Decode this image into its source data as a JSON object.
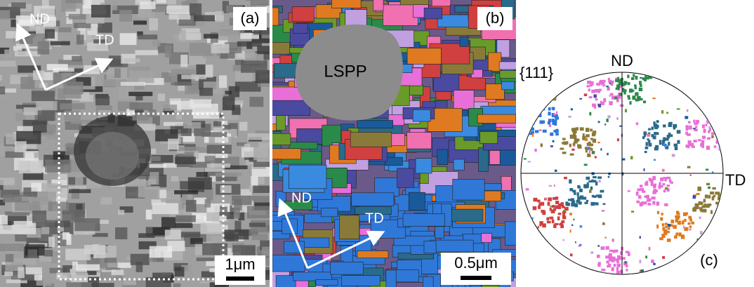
{
  "panels": [
    {
      "tag": "(a)",
      "axes": {
        "nd": "ND",
        "td": "TD"
      },
      "scale_bar": "1μm"
    },
    {
      "tag": "(b)",
      "particle": "LSPP",
      "axes": {
        "nd": "ND",
        "td": "TD"
      },
      "scale_bar": "0.5μm"
    },
    {
      "tag": "(c)",
      "plane": "{111}",
      "axes": {
        "nd": "ND",
        "td": "TD"
      }
    }
  ]
}
